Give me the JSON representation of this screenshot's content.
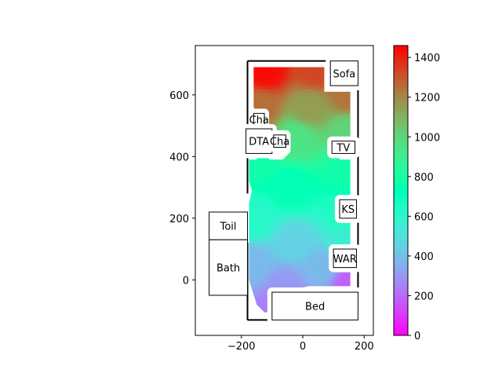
{
  "chart_data": {
    "type": "heatmap",
    "title": "",
    "xlabel": "",
    "ylabel": "",
    "xlim": [
      -350,
      230
    ],
    "ylim": [
      -180,
      760
    ],
    "xticks": [
      -200,
      0,
      200
    ],
    "xtick_labels": [
      "−200",
      "0",
      "200"
    ],
    "yticks": [
      0,
      200,
      400,
      600
    ],
    "ytick_labels": [
      "0",
      "200",
      "400",
      "600"
    ],
    "grid": false,
    "colormap": "rainbow",
    "colorbar": {
      "range": [
        0,
        1460
      ],
      "ticks": [
        0,
        200,
        400,
        600,
        800,
        1000,
        1200,
        1400
      ],
      "tick_labels": [
        "0",
        "200",
        "400",
        "600",
        "800",
        "1000",
        "1200",
        "1400"
      ]
    },
    "walls": [
      [
        [
          -180,
          710
        ],
        [
          180,
          710
        ]
      ],
      [
        [
          180,
          710
        ],
        [
          180,
          -130
        ]
      ],
      [
        [
          180,
          -130
        ],
        [
          -180,
          -130
        ]
      ],
      [
        [
          -180,
          -130
        ],
        [
          -180,
          120
        ]
      ],
      [
        [
          -180,
          280
        ],
        [
          -180,
          710
        ]
      ]
    ],
    "field_region": [
      [
        -160,
        690
      ],
      [
        70,
        690
      ],
      [
        70,
        610
      ],
      [
        155,
        610
      ],
      [
        155,
        430
      ],
      [
        120,
        430
      ],
      [
        120,
        390
      ],
      [
        155,
        390
      ],
      [
        155,
        270
      ],
      [
        120,
        270
      ],
      [
        120,
        200
      ],
      [
        155,
        200
      ],
      [
        155,
        110
      ],
      [
        120,
        110
      ],
      [
        120,
        40
      ],
      [
        155,
        40
      ],
      [
        155,
        -20
      ],
      [
        20,
        -20
      ],
      [
        -20,
        -30
      ],
      [
        -20,
        -105
      ],
      [
        -125,
        -105
      ],
      [
        -150,
        -80
      ],
      [
        -175,
        0
      ],
      [
        -175,
        250
      ],
      [
        -165,
        290
      ],
      [
        -175,
        320
      ],
      [
        -175,
        390
      ],
      [
        -150,
        390
      ],
      [
        -150,
        410
      ],
      [
        -110,
        410
      ],
      [
        -110,
        390
      ],
      [
        -65,
        390
      ],
      [
        -40,
        415
      ],
      [
        -40,
        470
      ],
      [
        -80,
        480
      ],
      [
        -110,
        470
      ],
      [
        -110,
        500
      ],
      [
        -130,
        510
      ],
      [
        -130,
        540
      ],
      [
        -150,
        545
      ],
      [
        -160,
        560
      ]
    ],
    "field_samples": [
      {
        "x": -120,
        "y": 680,
        "value": 1440
      },
      {
        "x": 40,
        "y": 680,
        "value": 1330
      },
      {
        "x": 150,
        "y": 600,
        "value": 1240
      },
      {
        "x": 20,
        "y": 560,
        "value": 1150
      },
      {
        "x": -140,
        "y": 560,
        "value": 1250
      },
      {
        "x": 150,
        "y": 480,
        "value": 1000
      },
      {
        "x": -20,
        "y": 460,
        "value": 950
      },
      {
        "x": -160,
        "y": 380,
        "value": 780
      },
      {
        "x": 140,
        "y": 350,
        "value": 780
      },
      {
        "x": -40,
        "y": 300,
        "value": 720
      },
      {
        "x": -160,
        "y": 200,
        "value": 620
      },
      {
        "x": 140,
        "y": 220,
        "value": 640
      },
      {
        "x": -30,
        "y": 120,
        "value": 450
      },
      {
        "x": 150,
        "y": 120,
        "value": 560
      },
      {
        "x": -160,
        "y": 50,
        "value": 380
      },
      {
        "x": 60,
        "y": 40,
        "value": 380
      },
      {
        "x": 150,
        "y": -10,
        "value": 180
      },
      {
        "x": -60,
        "y": -20,
        "value": 300
      },
      {
        "x": -100,
        "y": -100,
        "value": 240
      },
      {
        "x": -30,
        "y": -100,
        "value": 200
      }
    ],
    "furniture": [
      {
        "label": "Sofa",
        "x0": 90,
        "x1": 180,
        "y0": 630,
        "y1": 710
      },
      {
        "label": "Cha",
        "x0": -160,
        "x1": -125,
        "y0": 500,
        "y1": 540
      },
      {
        "label": "DTA",
        "x0": -185,
        "x1": -100,
        "y0": 410,
        "y1": 490
      },
      {
        "label": "Cha",
        "x0": -95,
        "x1": -55,
        "y0": 430,
        "y1": 470
      },
      {
        "label": "TV",
        "x0": 95,
        "x1": 170,
        "y0": 410,
        "y1": 450
      },
      {
        "label": "KS",
        "x0": 120,
        "x1": 175,
        "y0": 200,
        "y1": 260
      },
      {
        "label": "WAR",
        "x0": 100,
        "x1": 175,
        "y0": 40,
        "y1": 100
      },
      {
        "label": "Toil",
        "x0": -305,
        "x1": -180,
        "y0": 130,
        "y1": 220
      },
      {
        "label": "Bath",
        "x0": -305,
        "x1": -180,
        "y0": -50,
        "y1": 130
      },
      {
        "label": "Bed",
        "x0": -100,
        "x1": 180,
        "y0": -130,
        "y1": -40
      }
    ]
  }
}
